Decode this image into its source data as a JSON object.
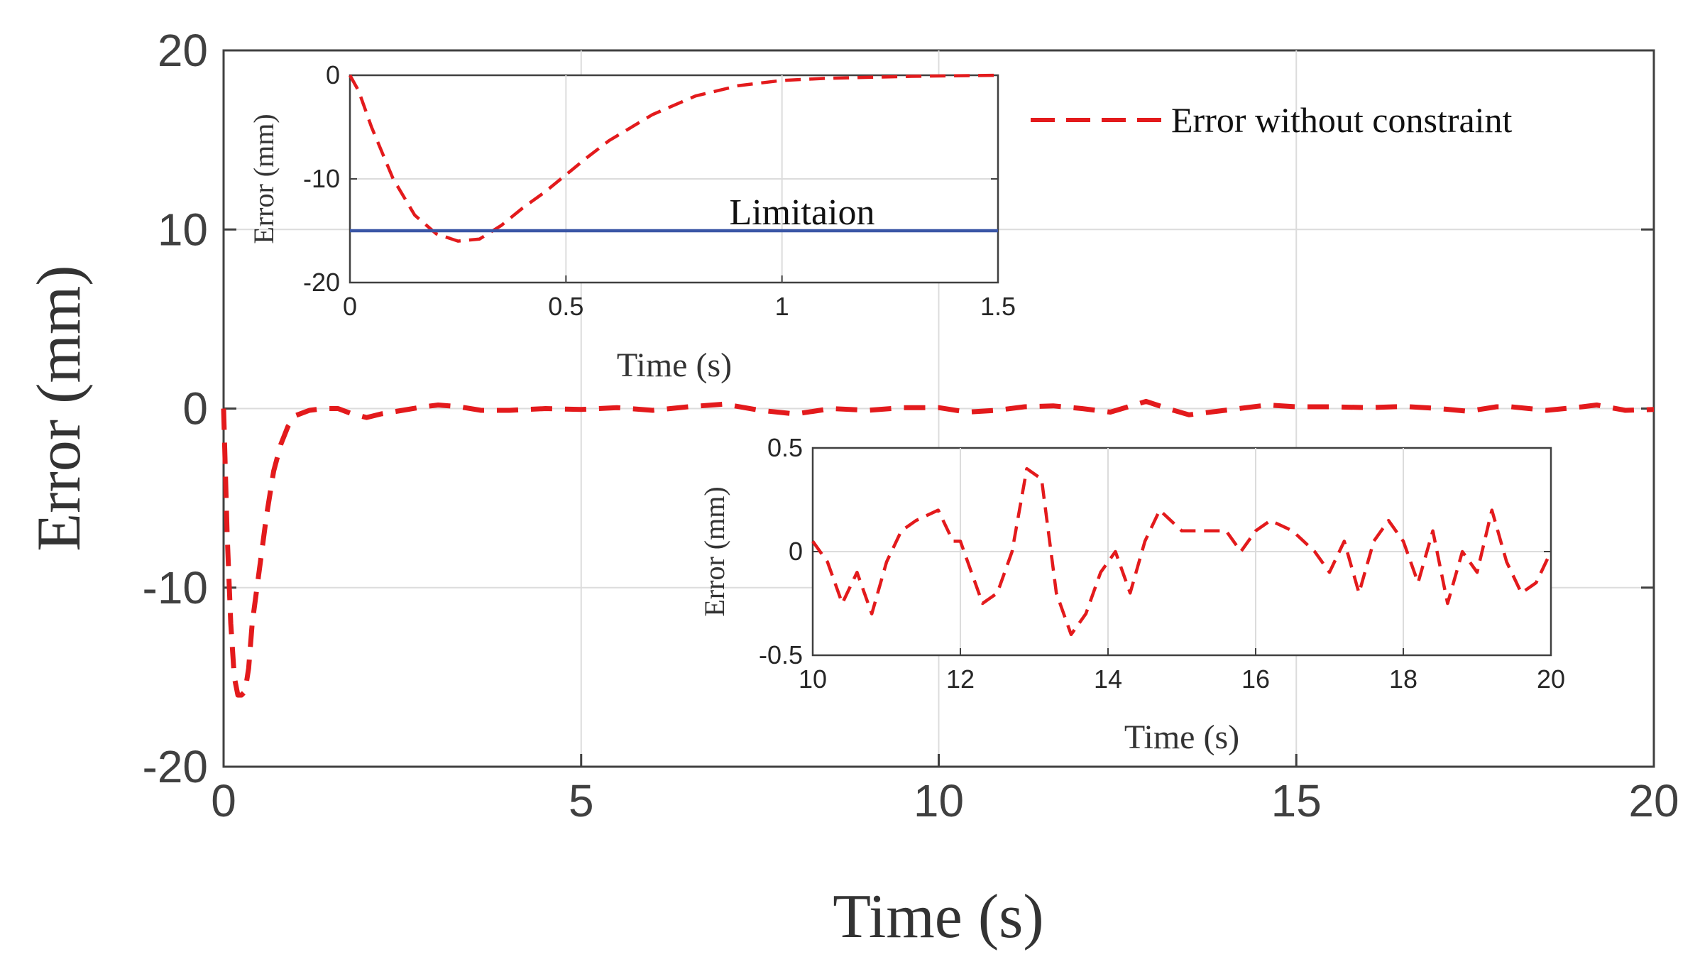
{
  "colors": {
    "error_line": "#e31a1c",
    "limitation_line": "#3a56a6",
    "axes": "#404040",
    "grid": "#dcdcdc"
  },
  "chart_data": [
    {
      "id": "main",
      "type": "line",
      "xlabel": "Time (s)",
      "ylabel": "Error (mm)",
      "xlim": [
        0,
        20
      ],
      "ylim": [
        -20,
        20
      ],
      "xticks": [
        0,
        5,
        10,
        15,
        20
      ],
      "yticks": [
        -20,
        -10,
        0,
        10,
        20
      ],
      "grid": true,
      "legend": {
        "placement": "top-right",
        "entries": [
          "Error without constraint"
        ]
      },
      "series": [
        {
          "name": "Error without constraint",
          "style": "dashed",
          "x": [
            0,
            0.05,
            0.1,
            0.15,
            0.2,
            0.25,
            0.3,
            0.35,
            0.4,
            0.5,
            0.6,
            0.7,
            0.8,
            0.9,
            1.0,
            1.2,
            1.4,
            1.6,
            1.8,
            2.0,
            2.2,
            2.5,
            2.8,
            3.0,
            3.3,
            3.6,
            4.0,
            4.5,
            5.0,
            5.5,
            6.0,
            6.5,
            7.0,
            7.5,
            8.0,
            8.5,
            9.0,
            9.5,
            10.0,
            10.4,
            10.8,
            11.2,
            11.6,
            12.0,
            12.4,
            12.9,
            13.2,
            13.5,
            14.0,
            14.6,
            15.0,
            15.5,
            16.0,
            16.5,
            17.0,
            17.4,
            17.8,
            18.0,
            18.5,
            19.0,
            19.2,
            19.6,
            20.0
          ],
          "y": [
            0,
            -7,
            -12,
            -15,
            -16,
            -16,
            -15.8,
            -14.5,
            -12,
            -9,
            -6,
            -3.5,
            -2,
            -1,
            -0.4,
            -0.1,
            0,
            0,
            -0.3,
            -0.5,
            -0.3,
            -0.1,
            0.1,
            0.2,
            0.1,
            -0.1,
            -0.1,
            0,
            -0.05,
            0.05,
            -0.1,
            0.1,
            0.25,
            -0.1,
            -0.3,
            0,
            -0.1,
            0.05,
            0.05,
            -0.2,
            -0.1,
            0.1,
            0.15,
            0,
            -0.2,
            0.4,
            0,
            -0.35,
            -0.1,
            0.2,
            0.1,
            0.1,
            0.05,
            0.12,
            0,
            -0.15,
            0.1,
            0.1,
            -0.1,
            0.1,
            0.2,
            -0.1,
            -0.05
          ]
        }
      ]
    },
    {
      "id": "inset1",
      "type": "line",
      "xlabel": "Time (s)",
      "ylabel": "Error (mm)",
      "xlim": [
        0,
        1.5
      ],
      "ylim": [
        -20,
        0
      ],
      "xticks": [
        0,
        0.5,
        1,
        1.5
      ],
      "yticks": [
        -20,
        -10,
        0
      ],
      "grid": true,
      "annotation": "Limitaion",
      "series": [
        {
          "name": "Error without constraint",
          "style": "dashed",
          "x": [
            0,
            0.02,
            0.05,
            0.1,
            0.15,
            0.2,
            0.25,
            0.3,
            0.35,
            0.4,
            0.45,
            0.5,
            0.55,
            0.6,
            0.7,
            0.8,
            0.9,
            1.0,
            1.1,
            1.2,
            1.3,
            1.4,
            1.5
          ],
          "y": [
            0,
            -1.5,
            -5,
            -10,
            -13.5,
            -15.3,
            -16,
            -15.8,
            -14.5,
            -12.8,
            -11.3,
            -9.6,
            -7.9,
            -6.3,
            -3.8,
            -2,
            -1,
            -0.5,
            -0.3,
            -0.2,
            -0.1,
            -0.05,
            0
          ]
        },
        {
          "name": "Limitaion",
          "style": "solid",
          "x": [
            0,
            1.5
          ],
          "y": [
            -15,
            -15
          ]
        }
      ]
    },
    {
      "id": "inset2",
      "type": "line",
      "xlabel": "Time (s)",
      "ylabel": "Error (mm)",
      "xlim": [
        10,
        20
      ],
      "ylim": [
        -0.5,
        0.5
      ],
      "xticks": [
        10,
        12,
        14,
        16,
        18,
        20
      ],
      "yticks": [
        -0.5,
        0,
        0.5
      ],
      "grid": true,
      "series": [
        {
          "name": "Error without constraint",
          "style": "dashed",
          "x": [
            10,
            10.2,
            10.4,
            10.6,
            10.8,
            11.0,
            11.2,
            11.4,
            11.7,
            11.9,
            12.0,
            12.1,
            12.3,
            12.5,
            12.7,
            12.9,
            13.1,
            13.3,
            13.5,
            13.7,
            13.9,
            14.1,
            14.3,
            14.5,
            14.7,
            15.0,
            15.3,
            15.6,
            15.8,
            16.0,
            16.2,
            16.5,
            16.8,
            17.0,
            17.2,
            17.4,
            17.6,
            17.8,
            18.0,
            18.2,
            18.4,
            18.6,
            18.8,
            19.0,
            19.2,
            19.4,
            19.6,
            19.8,
            20.0
          ],
          "y": [
            0.05,
            -0.05,
            -0.25,
            -0.1,
            -0.3,
            -0.05,
            0.1,
            0.15,
            0.2,
            0.05,
            0.05,
            -0.05,
            -0.25,
            -0.2,
            0,
            0.4,
            0.35,
            -0.2,
            -0.4,
            -0.3,
            -0.1,
            0,
            -0.2,
            0.05,
            0.2,
            0.1,
            0.1,
            0.1,
            0,
            0.1,
            0.15,
            0.1,
            0,
            -0.1,
            0.05,
            -0.2,
            0.05,
            0.15,
            0.05,
            -0.15,
            0.1,
            -0.25,
            0,
            -0.1,
            0.2,
            -0.05,
            -0.2,
            -0.15,
            0
          ]
        }
      ]
    }
  ]
}
